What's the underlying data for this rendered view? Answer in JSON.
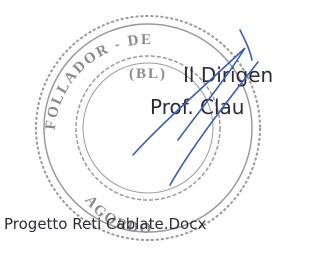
{
  "stamp": {
    "top_text": "FOLLADOR - DE",
    "middle_text": "(BL)",
    "bottom_text": "AGORDO"
  },
  "signature": {
    "role": "Il Dirigen",
    "name": "Prof. Clau"
  },
  "footer": {
    "filename": "Progetto Reti Cablate.Docx"
  }
}
